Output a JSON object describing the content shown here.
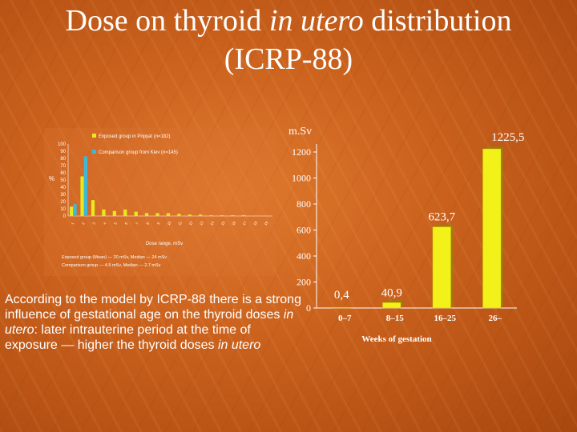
{
  "slide": {
    "title_line1_pre": "Dose on thyroid ",
    "title_line1_em": "in utero",
    "title_line1_post": " distribution",
    "title_line2": "(ICRP-88)",
    "body_pre": "According to the model by ICRP-88 there is a strong influence of gestational age on the thyroid doses ",
    "body_em1": "in utero",
    "body_mid": ": later intrauterine period at the time of exposure — higher the thyroid doses ",
    "body_em2": "in utero"
  },
  "chart_data": [
    {
      "type": "bar",
      "title": "",
      "ylabel": "m.Sv",
      "xlabel": "Weeks of gestation",
      "categories": [
        "0–7",
        "8–15",
        "16–25",
        "26–"
      ],
      "values": [
        0.4,
        40.9,
        623.7,
        1225.5
      ],
      "data_labels": [
        "0,4",
        "40,9",
        "623,7",
        "1225,5"
      ],
      "ylim": [
        0,
        1200
      ],
      "yticks": [
        0,
        200,
        400,
        600,
        800,
        1000,
        1200
      ],
      "bar_color": "#f2f21a",
      "grid": false,
      "legend": "none"
    },
    {
      "type": "bar",
      "title": "",
      "ylabel": "%",
      "xlabel": "Dose range, mSv",
      "ylim": [
        0,
        100
      ],
      "yticks": [
        0,
        10,
        20,
        30,
        40,
        50,
        60,
        70,
        80,
        90,
        100
      ],
      "categories": [
        "1",
        "2",
        "3",
        "4",
        "5",
        "6",
        "7",
        "8",
        "9",
        "10",
        "11",
        "12",
        "13",
        "14",
        "15",
        "16",
        "17",
        "18",
        "19"
      ],
      "legend": "top-right",
      "legend_entries": [
        "Exposed group in Pripyat (n=182)",
        "Comparison group from Kiev (n=145)"
      ],
      "series": [
        {
          "name": "Exposed group in Pripyat (n=182)",
          "color": "#e8e81e",
          "values": [
            13,
            55,
            22,
            9,
            7,
            9,
            6,
            4,
            4,
            4,
            3,
            2,
            2,
            1,
            1,
            1,
            1,
            0,
            0
          ]
        },
        {
          "name": "Comparison group from Kiev (n=145)",
          "color": "#3fb8d8",
          "values": [
            17,
            83,
            0,
            0,
            0,
            0,
            0,
            0,
            0,
            0,
            0,
            0,
            0,
            0,
            0,
            0,
            0,
            0,
            0
          ]
        }
      ],
      "footnote_line1": "Exposed group (Mean) — 20 mSv, Median — 24 mSv",
      "footnote_line2": "Comparison group — 4.5 mSv, Median — 2.7 mSv"
    }
  ]
}
